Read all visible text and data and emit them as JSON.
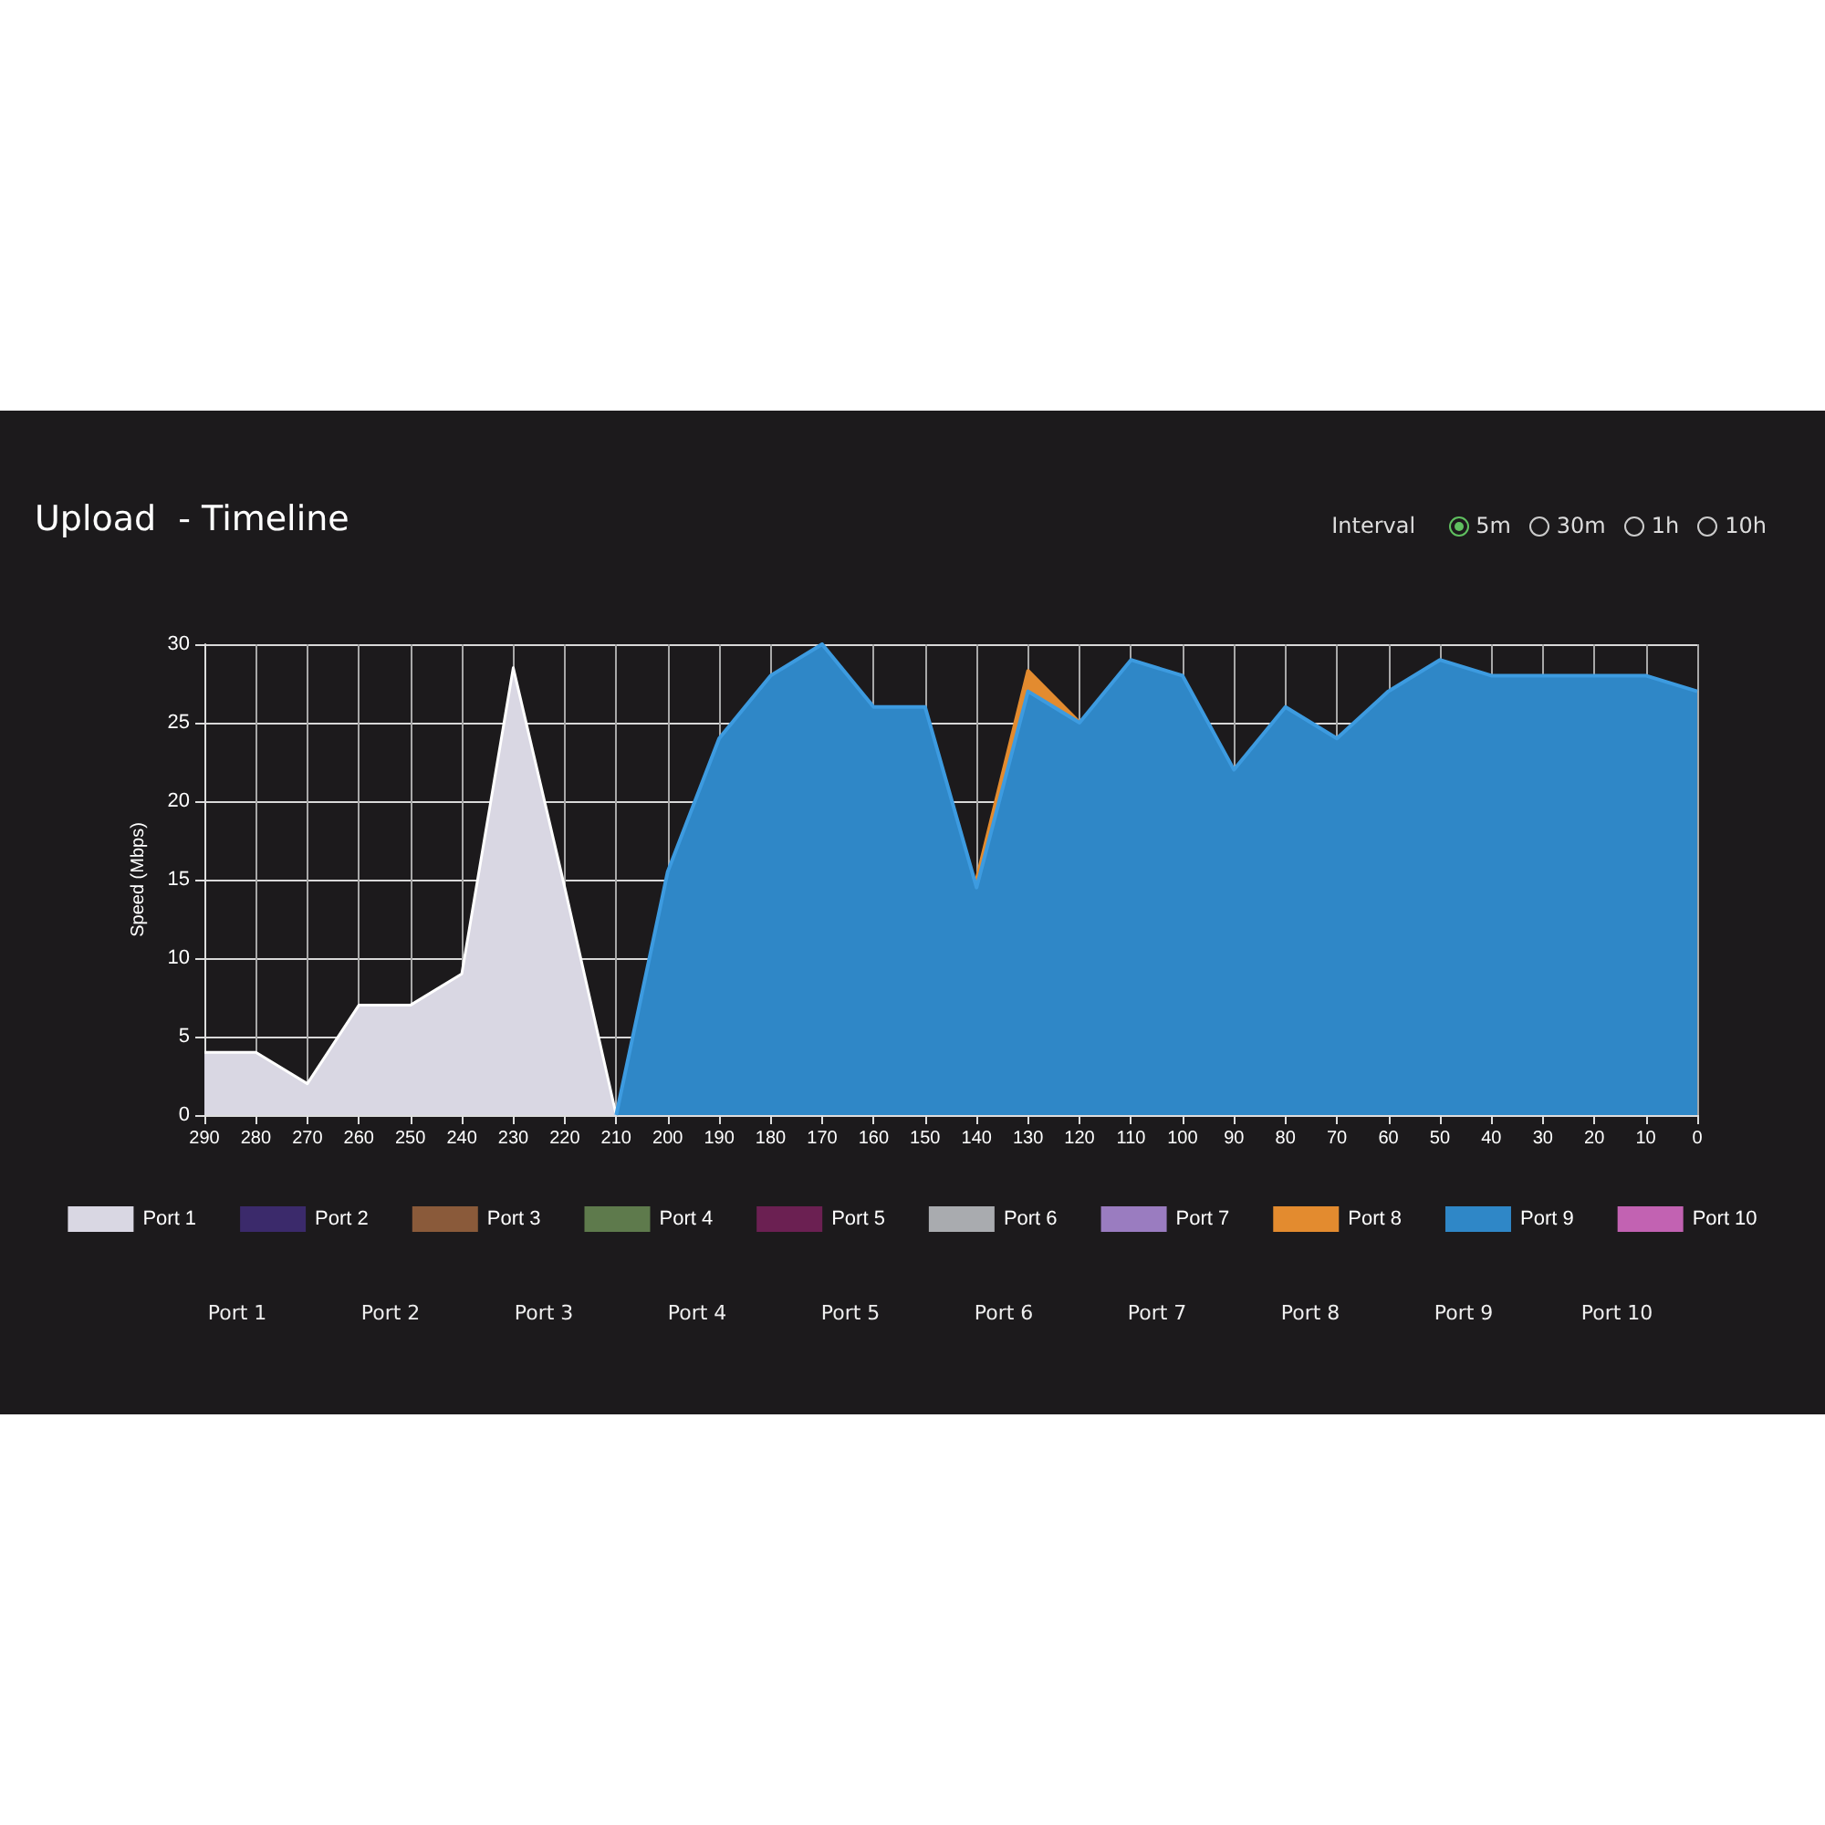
{
  "chart_data": {
    "type": "area",
    "title": "Upload  - Timeline",
    "ylabel": "Speed (Mbps)",
    "categories": [
      "290",
      "280",
      "270",
      "260",
      "250",
      "240",
      "230",
      "220",
      "210",
      "200",
      "190",
      "180",
      "170",
      "160",
      "150",
      "140",
      "130",
      "120",
      "110",
      "100",
      "90",
      "80",
      "70",
      "60",
      "50",
      "40",
      "30",
      "20",
      "10",
      "0"
    ],
    "ylim": [
      0,
      30
    ],
    "yticks": [
      0,
      5,
      10,
      15,
      20,
      25,
      30
    ],
    "grid": true,
    "legend": "bottom",
    "marker": "none",
    "series": [
      {
        "name": "Port 1",
        "color": "#d9d7e3",
        "values": [
          4,
          4,
          2,
          7,
          7,
          9,
          28.5,
          14.5,
          0,
          null,
          null,
          null,
          null,
          null,
          null,
          null,
          null,
          null,
          null,
          null,
          null,
          null,
          null,
          null,
          null,
          null,
          null,
          null,
          null,
          null
        ]
      },
      {
        "name": "Port 2",
        "color": "#3b2a6b",
        "values": [
          null,
          null,
          null,
          null,
          null,
          null,
          null,
          null,
          null,
          null,
          null,
          null,
          null,
          null,
          null,
          null,
          null,
          null,
          null,
          null,
          null,
          null,
          null,
          null,
          null,
          null,
          null,
          null,
          null,
          null
        ]
      },
      {
        "name": "Port 3",
        "color": "#8a5a3a",
        "values": [
          null,
          null,
          null,
          null,
          null,
          null,
          null,
          null,
          null,
          null,
          null,
          null,
          null,
          null,
          null,
          null,
          null,
          null,
          null,
          null,
          null,
          null,
          null,
          null,
          null,
          null,
          null,
          null,
          null,
          null
        ]
      },
      {
        "name": "Port 4",
        "color": "#5e7a4c",
        "values": [
          null,
          null,
          null,
          null,
          null,
          null,
          null,
          null,
          null,
          null,
          null,
          null,
          null,
          null,
          null,
          null,
          null,
          null,
          null,
          null,
          null,
          null,
          null,
          null,
          null,
          null,
          null,
          null,
          null,
          null
        ]
      },
      {
        "name": "Port 5",
        "color": "#6b2052",
        "values": [
          null,
          null,
          null,
          null,
          null,
          null,
          null,
          null,
          null,
          null,
          null,
          null,
          null,
          null,
          null,
          null,
          null,
          null,
          null,
          null,
          null,
          null,
          null,
          null,
          null,
          null,
          null,
          null,
          null,
          null
        ]
      },
      {
        "name": "Port 6",
        "color": "#a9abaf",
        "values": [
          null,
          null,
          null,
          null,
          null,
          null,
          null,
          null,
          null,
          null,
          null,
          null,
          null,
          null,
          null,
          null,
          null,
          null,
          null,
          null,
          null,
          null,
          null,
          null,
          null,
          null,
          null,
          null,
          null,
          null
        ]
      },
      {
        "name": "Port 7",
        "color": "#9a7cc0",
        "values": [
          null,
          null,
          null,
          null,
          null,
          null,
          null,
          null,
          null,
          null,
          null,
          null,
          null,
          null,
          null,
          null,
          null,
          null,
          null,
          null,
          null,
          null,
          null,
          null,
          null,
          null,
          null,
          null,
          null,
          null
        ]
      },
      {
        "name": "Port 8",
        "color": "#e38b2f",
        "values": [
          null,
          null,
          null,
          null,
          null,
          null,
          null,
          null,
          null,
          null,
          null,
          null,
          null,
          null,
          null,
          15,
          28.3,
          25,
          null,
          null,
          null,
          null,
          null,
          null,
          null,
          null,
          null,
          null,
          null,
          null
        ]
      },
      {
        "name": "Port 9",
        "color": "#2f87c7",
        "values": [
          null,
          null,
          null,
          null,
          null,
          null,
          null,
          null,
          0,
          15.5,
          24,
          28,
          30,
          26,
          26,
          14.5,
          27,
          25,
          29,
          28,
          22,
          26,
          24,
          27,
          29,
          28,
          28,
          28,
          28,
          27
        ]
      },
      {
        "name": "Port 10",
        "color": "#c262b2",
        "values": [
          null,
          null,
          null,
          null,
          null,
          null,
          null,
          null,
          null,
          null,
          null,
          null,
          null,
          null,
          null,
          null,
          null,
          null,
          null,
          null,
          null,
          null,
          null,
          null,
          null,
          null,
          null,
          null,
          null,
          null
        ]
      }
    ],
    "annotations": [
      "Interval",
      "5m",
      "30m",
      "1h",
      "10h",
      "Port 1",
      "Port 2",
      "Port 3",
      "Port 4",
      "Port 5",
      "Port 6",
      "Port 7",
      "Port 8",
      "Port 9",
      "Port 10"
    ]
  }
}
